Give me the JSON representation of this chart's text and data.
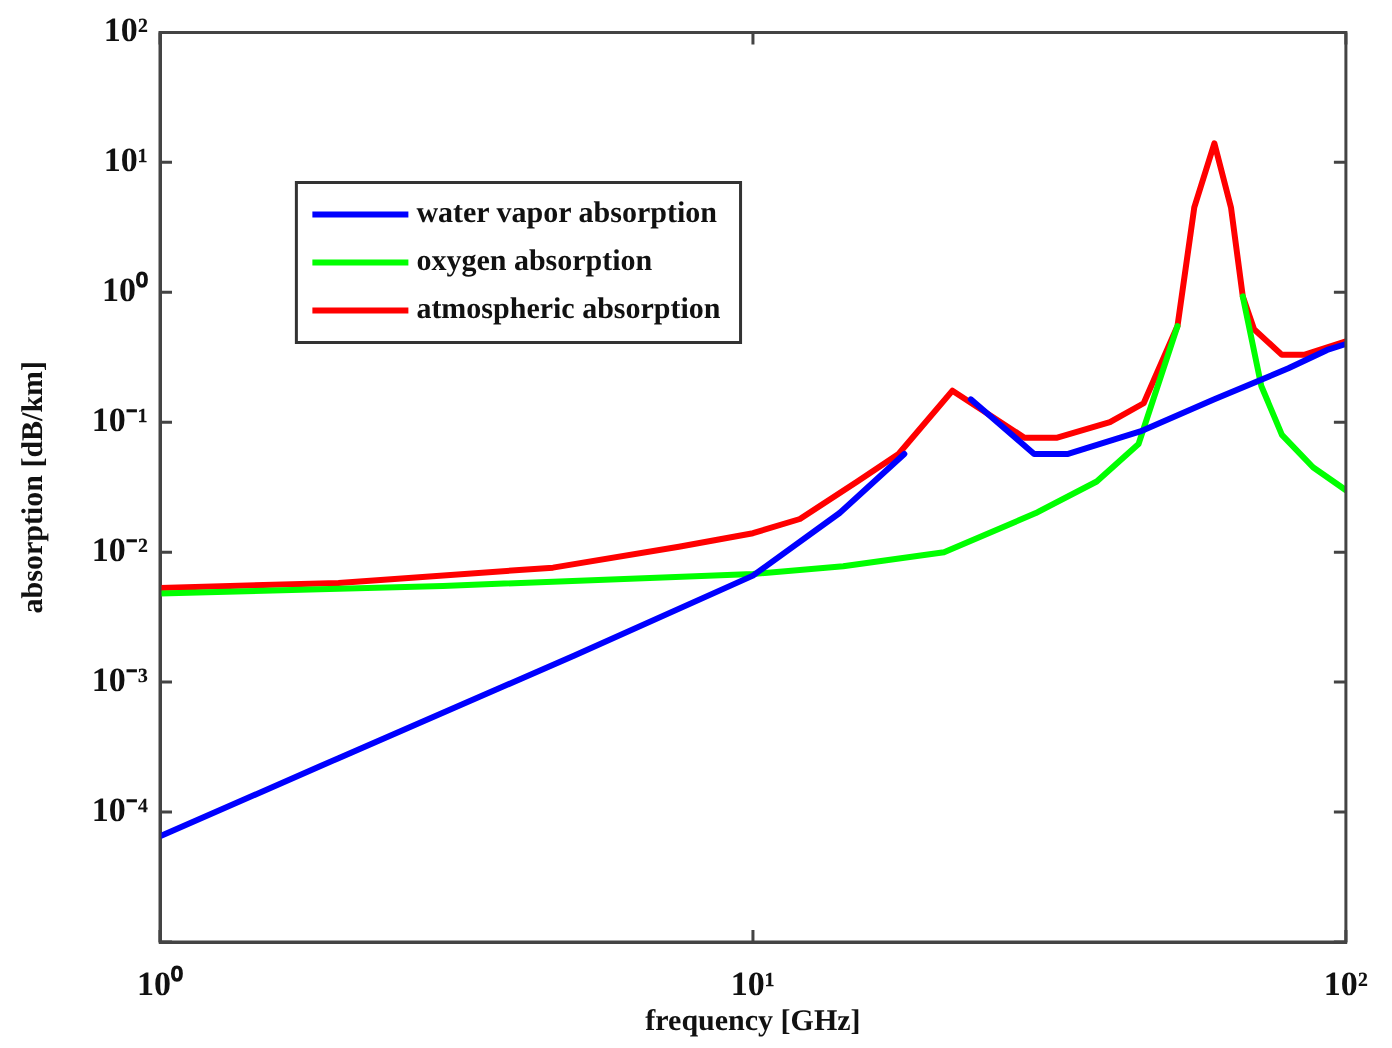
{
  "chart_data": {
    "type": "line",
    "xlabel": "frequency [GHz]",
    "ylabel": "absorption [dB/km]",
    "log": "xy",
    "xlim": [
      1,
      100
    ],
    "ylim": [
      1e-05,
      100
    ],
    "xticks": [
      {
        "value": 1,
        "label": "10⁰"
      },
      {
        "value": 10,
        "label": "10¹"
      },
      {
        "value": 100,
        "label": "10²"
      }
    ],
    "yticks": [
      {
        "value": 1e-05,
        "label": null
      },
      {
        "value": 0.0001,
        "label": "10⁻⁴"
      },
      {
        "value": 0.001,
        "label": "10⁻³"
      },
      {
        "value": 0.01,
        "label": "10⁻²"
      },
      {
        "value": 0.1,
        "label": "10⁻¹"
      },
      {
        "value": 1,
        "label": "10⁰"
      },
      {
        "value": 10,
        "label": "10¹"
      },
      {
        "value": 100,
        "label": "10²"
      }
    ],
    "grid": false,
    "legend": "top left",
    "marker": "none",
    "line_style": "solid",
    "series": [
      {
        "name": "water vapor absorption",
        "color": "#0000ff",
        "x": [
          1,
          2,
          5,
          10,
          14,
          18,
          20,
          23.3,
          29.8,
          34,
          45,
          60,
          80,
          93,
          100
        ],
        "values": [
          6.5e-05,
          0.00026,
          0.0016,
          0.0066,
          0.02,
          0.057,
          null,
          0.15,
          0.057,
          0.057,
          0.085,
          0.15,
          0.26,
          0.36,
          0.4
        ]
      },
      {
        "name": "oxygen absorption",
        "color": "#00ff00",
        "x": [
          1,
          3,
          10,
          14.2,
          21,
          30,
          38,
          44.7,
          52,
          60,
          67,
          72,
          78,
          88,
          100
        ],
        "values": [
          0.0048,
          0.0055,
          0.0068,
          0.0078,
          0.01,
          0.02,
          0.035,
          0.068,
          0.55,
          null,
          0.93,
          0.19,
          0.08,
          0.045,
          0.03
        ]
      },
      {
        "name": "atmospheric absorption",
        "color": "#ff0000",
        "x": [
          1,
          2,
          4.6,
          7.5,
          10,
          12,
          15,
          17.6,
          21.7,
          28.7,
          32.6,
          40,
          45.6,
          52,
          55.5,
          60,
          64,
          67,
          70,
          78,
          85,
          100
        ],
        "values": [
          0.0053,
          0.0058,
          0.0076,
          0.011,
          0.014,
          0.018,
          0.035,
          0.057,
          0.175,
          0.076,
          0.076,
          0.1,
          0.14,
          0.55,
          4.5,
          14,
          4.5,
          0.93,
          0.52,
          0.33,
          0.33,
          0.42
        ]
      }
    ]
  }
}
